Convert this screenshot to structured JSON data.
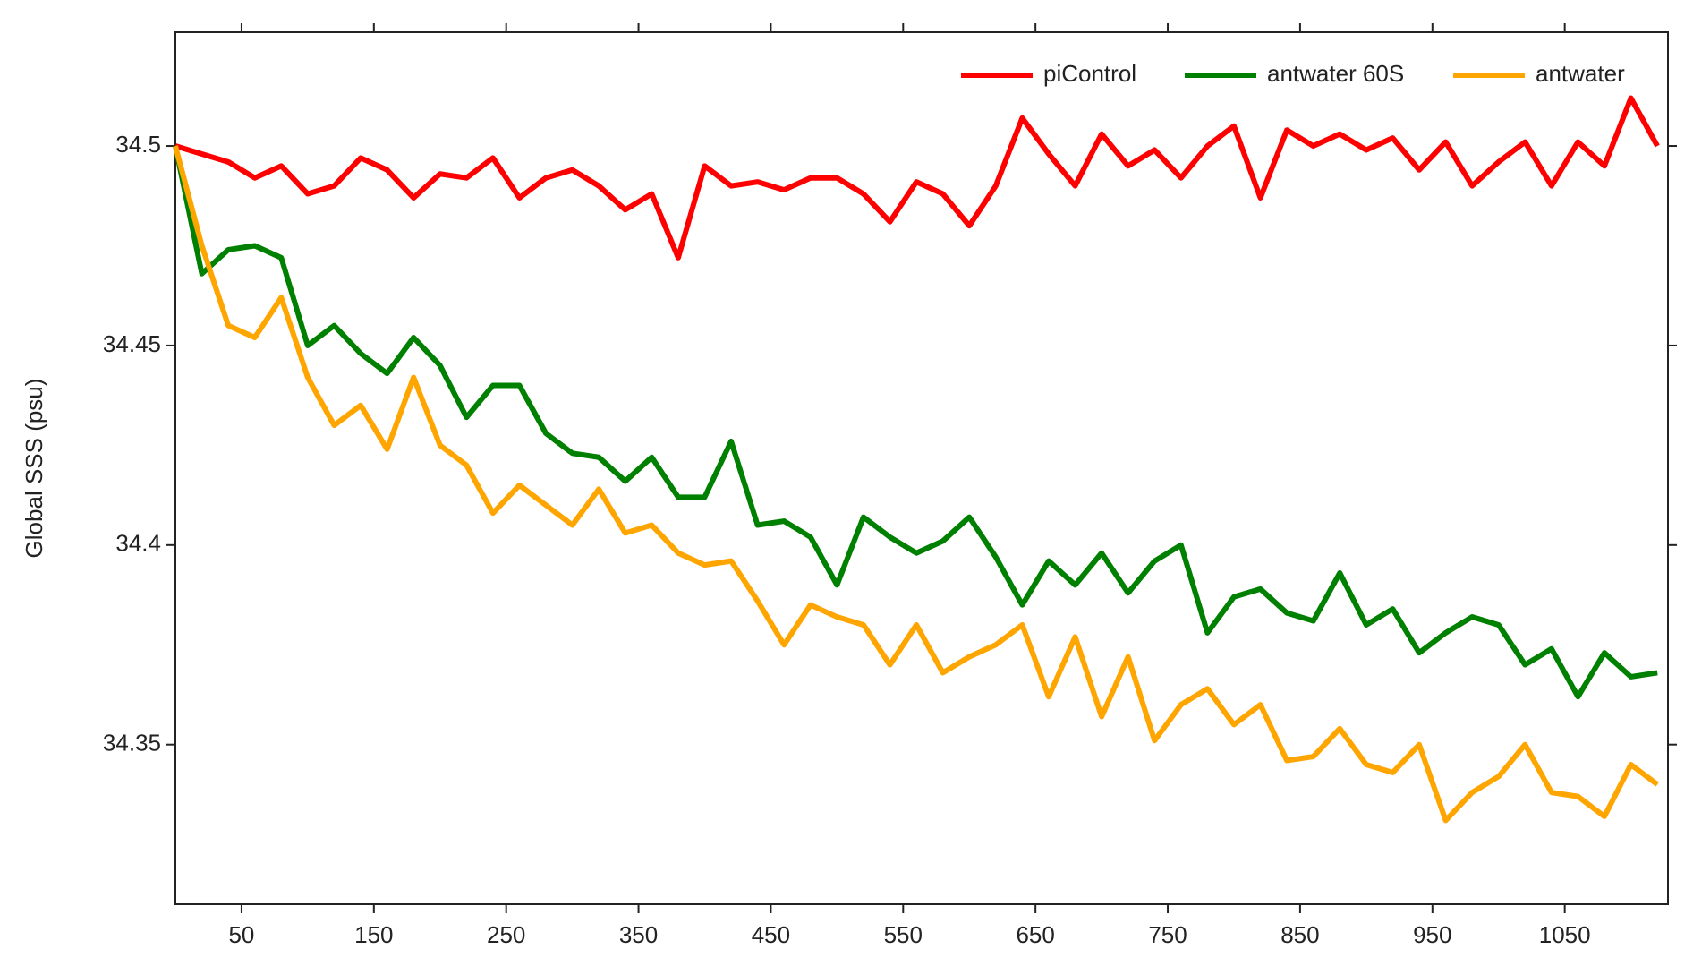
{
  "chart_data": {
    "type": "line",
    "y_label": "Global SSS (psu)",
    "x": [
      0,
      20,
      40,
      60,
      80,
      100,
      120,
      140,
      160,
      180,
      200,
      220,
      240,
      260,
      280,
      300,
      320,
      340,
      360,
      380,
      400,
      420,
      440,
      460,
      480,
      500,
      520,
      540,
      560,
      580,
      600,
      620,
      640,
      660,
      680,
      700,
      720,
      740,
      760,
      780,
      800,
      820,
      840,
      860,
      880,
      900,
      920,
      940,
      960,
      980,
      1000,
      1020,
      1040,
      1060,
      1080,
      1100,
      1120
    ],
    "series": [
      {
        "name": "piControl",
        "color": "#ff0000",
        "values": [
          34.5,
          34.498,
          34.496,
          34.492,
          34.495,
          34.488,
          34.49,
          34.497,
          34.494,
          34.487,
          34.493,
          34.492,
          34.497,
          34.487,
          34.492,
          34.494,
          34.49,
          34.484,
          34.488,
          34.472,
          34.495,
          34.49,
          34.491,
          34.489,
          34.492,
          34.492,
          34.488,
          34.481,
          34.491,
          34.488,
          34.48,
          34.49,
          34.507,
          34.498,
          34.49,
          34.503,
          34.495,
          34.499,
          34.492,
          34.5,
          34.505,
          34.487,
          34.504,
          34.5,
          34.503,
          34.499,
          34.502,
          34.494,
          34.501,
          34.49,
          34.496,
          34.501,
          34.49,
          34.501,
          34.495,
          34.512,
          34.5
        ]
      },
      {
        "name": "antwater 60S",
        "color": "#008000",
        "values": [
          34.5,
          34.468,
          34.474,
          34.475,
          34.472,
          34.45,
          34.455,
          34.448,
          34.443,
          34.452,
          34.445,
          34.432,
          34.44,
          34.44,
          34.428,
          34.423,
          34.422,
          34.416,
          34.422,
          34.412,
          34.412,
          34.426,
          34.405,
          34.406,
          34.402,
          34.39,
          34.407,
          34.402,
          34.398,
          34.401,
          34.407,
          34.397,
          34.385,
          34.396,
          34.39,
          34.398,
          34.388,
          34.396,
          34.4,
          34.378,
          34.387,
          34.389,
          34.383,
          34.381,
          34.393,
          34.38,
          34.384,
          34.373,
          34.378,
          34.382,
          34.38,
          34.37,
          34.374,
          34.362,
          34.373,
          34.367,
          34.368
        ]
      },
      {
        "name": "antwater",
        "color": "#ffa500",
        "values": [
          34.5,
          34.475,
          34.455,
          34.452,
          34.462,
          34.442,
          34.43,
          34.435,
          34.424,
          34.442,
          34.425,
          34.42,
          34.408,
          34.415,
          34.41,
          34.405,
          34.414,
          34.403,
          34.405,
          34.398,
          34.395,
          34.396,
          34.386,
          34.375,
          34.385,
          34.382,
          34.38,
          34.37,
          34.38,
          34.368,
          34.372,
          34.375,
          34.38,
          34.362,
          34.377,
          34.357,
          34.372,
          34.351,
          34.36,
          34.364,
          34.355,
          34.36,
          34.346,
          34.347,
          34.354,
          34.345,
          34.343,
          34.35,
          34.331,
          34.338,
          34.342,
          34.35,
          34.338,
          34.337,
          34.332,
          34.345,
          34.34
        ]
      }
    ],
    "xlim": [
      0,
      1128
    ],
    "ylim": [
      34.31,
      34.5285
    ],
    "xticks": [
      50,
      150,
      250,
      350,
      450,
      550,
      650,
      750,
      850,
      950,
      1050
    ],
    "yticks": [
      34.35,
      34.4,
      34.45,
      34.5
    ],
    "legend": "upper right"
  }
}
